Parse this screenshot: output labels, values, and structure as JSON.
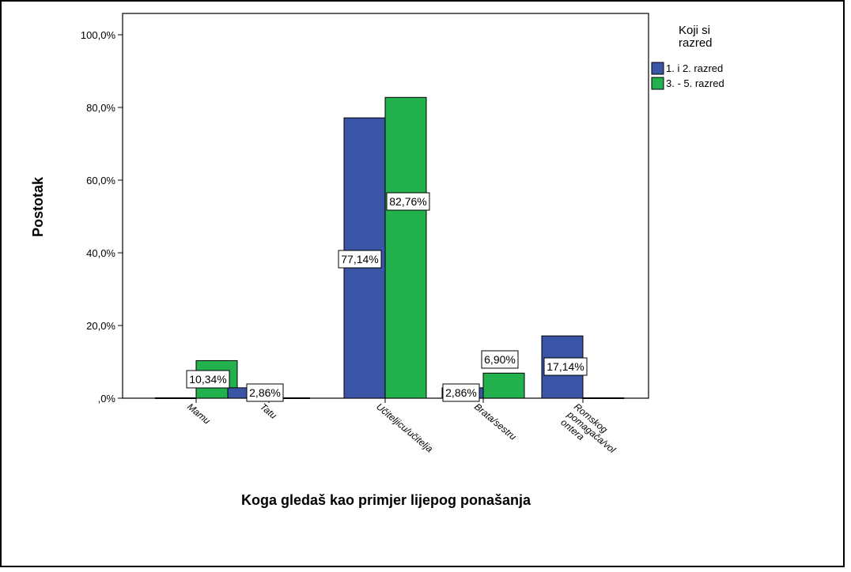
{
  "chart_data": {
    "type": "bar",
    "title": "",
    "xlabel": "Koga gledaš kao primjer lijepog ponašanja",
    "ylabel": "Postotak",
    "ylim": [
      0,
      100
    ],
    "yticks": [
      "100,0%",
      "80,0%",
      "60,0%",
      "40,0%",
      "20,0%",
      ",0%"
    ],
    "ytick_values": [
      100,
      80,
      60,
      40,
      20,
      0
    ],
    "categories": [
      "Mamu",
      "Tatu",
      "Učiteljicu/učitelja",
      "Brata/sestru",
      "Romskog pomagača/volontera"
    ],
    "category_lines": [
      [
        "Mamu"
      ],
      [
        "Tatu"
      ],
      [
        "Učiteljicu/učitelja"
      ],
      [
        "Brata/sestru"
      ],
      [
        "Romskog",
        "pomagača/vol",
        "ontera"
      ]
    ],
    "legend": {
      "title_lines": [
        "Koji si",
        "razred"
      ],
      "position": "top-right"
    },
    "series": [
      {
        "name": "1. i 2. razred",
        "color": "#3a55a6",
        "values": [
          0,
          2.86,
          77.14,
          2.86,
          17.14
        ],
        "labels": [
          "",
          "2,86%",
          "77,14%",
          "2,86%",
          "17,14%"
        ]
      },
      {
        "name": "3. - 5. razred",
        "color": "#22b14c",
        "values": [
          10.34,
          0,
          82.76,
          6.9,
          0
        ],
        "labels": [
          "10,34%",
          "",
          "82,76%",
          "6,90%",
          ""
        ]
      }
    ],
    "grid": false
  }
}
